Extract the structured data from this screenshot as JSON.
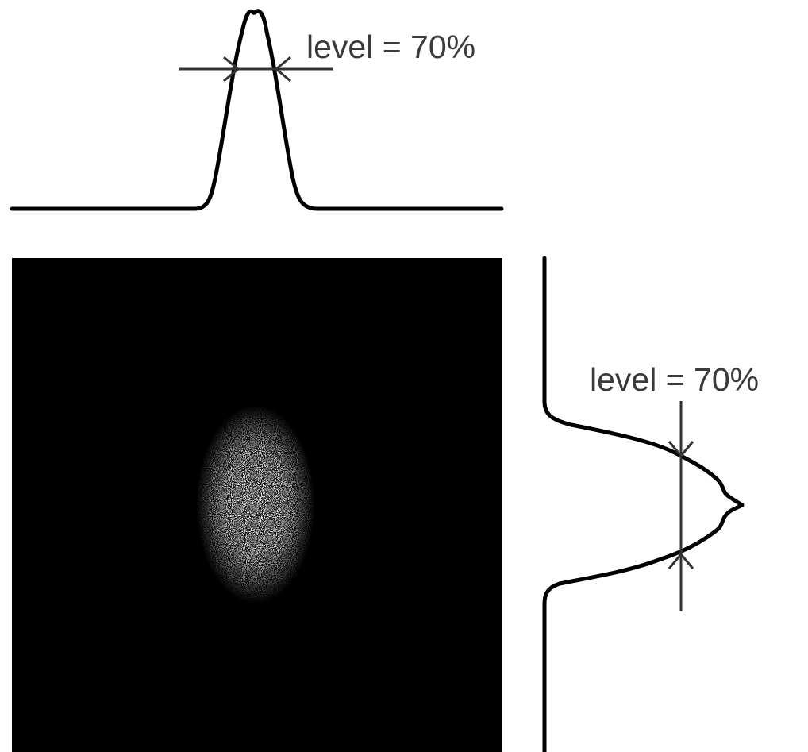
{
  "top_profile": {
    "label": "level = 70%"
  },
  "side_profile": {
    "label": "level = 70%"
  }
}
